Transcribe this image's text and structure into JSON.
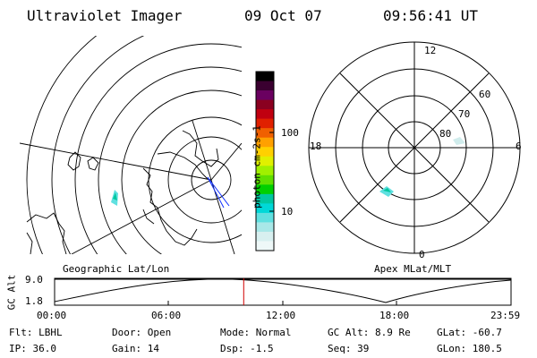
{
  "header": {
    "title": "Ultraviolet Imager",
    "date": "09 Oct 07",
    "time": "09:56:41 UT"
  },
  "colorbar": {
    "unit_label": "photon cm-2s-1",
    "ticks": [
      "100",
      "10"
    ],
    "colors": [
      "#000000",
      "#3a0030",
      "#6a0060",
      "#8a0020",
      "#c00010",
      "#e02000",
      "#f06000",
      "#ffa000",
      "#ffd000",
      "#e0f000",
      "#a0f000",
      "#60e000",
      "#00d000",
      "#00c8a0",
      "#00d8d8",
      "#60e0e0",
      "#a8e8e8",
      "#d8f0f0",
      "#eef8f8"
    ]
  },
  "map_labels": {
    "left": "Geographic Lat/Lon",
    "right": "Apex MLat/MLT"
  },
  "polar_plot": {
    "mlt_top": "12",
    "mlt_left": "18",
    "mlt_right": "6",
    "mlt_bottom": "0",
    "lat_labels": [
      "60",
      "70",
      "80"
    ]
  },
  "altitude_plot": {
    "ylabel": "GC Alt",
    "y_top": "9.0",
    "y_bottom": "1.8",
    "x_ticks": [
      "00:00",
      "06:00",
      "12:00",
      "18:00",
      "23:59"
    ],
    "current_time_fraction": 0.4143
  },
  "info": {
    "row1": {
      "filter": "Flt: LBHL",
      "door": "Door: Open",
      "mode": "Mode: Normal",
      "gc_alt": "GC Alt: 8.9 Re",
      "glat": "GLat: -60.7"
    },
    "row2": {
      "ip": "IP: 36.0",
      "gain": "Gain: 14",
      "dsp": "Dsp:   -1.5",
      "seq": "Seq: 39",
      "glon": "GLon: 180.5"
    }
  }
}
